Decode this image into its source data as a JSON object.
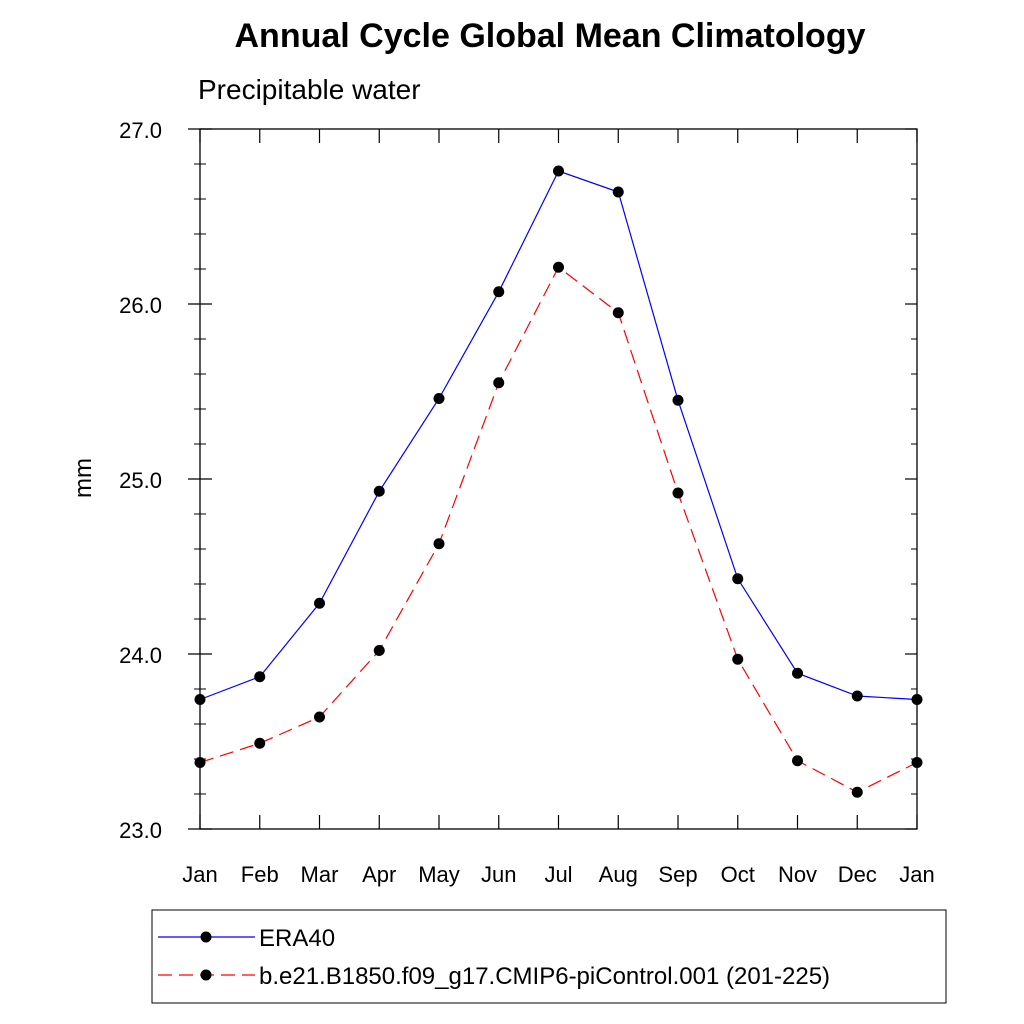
{
  "chart_data": {
    "type": "line",
    "title": "Annual Cycle Global Mean Climatology",
    "subtitle": "Precipitable water",
    "xlabel": "",
    "ylabel": "mm",
    "categories": [
      "Jan",
      "Feb",
      "Mar",
      "Apr",
      "May",
      "Jun",
      "Jul",
      "Aug",
      "Sep",
      "Oct",
      "Nov",
      "Dec",
      "Jan"
    ],
    "ylim": [
      23.0,
      27.0
    ],
    "yticks": [
      23.0,
      24.0,
      25.0,
      26.0,
      27.0
    ],
    "ytick_labels": [
      "23.0",
      "24.0",
      "25.0",
      "26.0",
      "27.0"
    ],
    "legend_position": "bottom",
    "grid": false,
    "series": [
      {
        "name": "ERA40",
        "color": "#0000ff",
        "dashed": false,
        "values": [
          23.74,
          23.87,
          24.29,
          24.93,
          25.46,
          26.07,
          26.76,
          26.64,
          25.45,
          24.43,
          23.89,
          23.76,
          23.74
        ]
      },
      {
        "name": "b.e21.B1850.f09_g17.CMIP6-piControl.001 (201-225)",
        "color": "#ff0000",
        "dashed": true,
        "values": [
          23.38,
          23.49,
          23.64,
          24.02,
          24.63,
          25.55,
          26.21,
          25.95,
          24.92,
          23.97,
          23.39,
          23.21,
          23.38
        ]
      }
    ]
  }
}
